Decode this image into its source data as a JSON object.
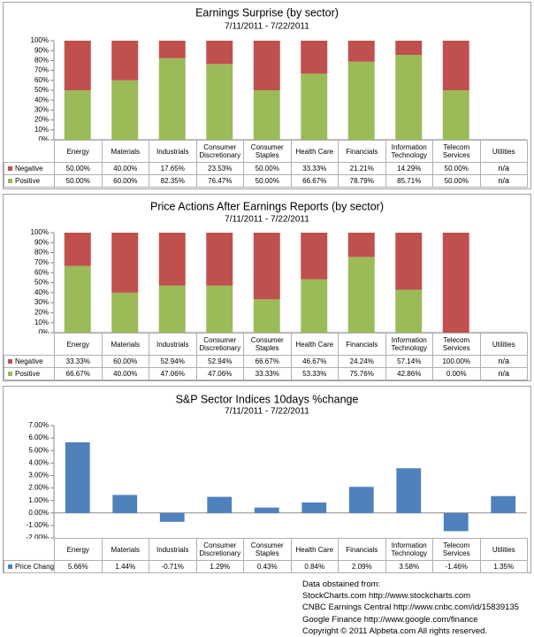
{
  "chart_data": [
    {
      "type": "stacked_bar",
      "title": "Earnings Surprise (by sector)",
      "subtitle": "7/11/2011 - 7/22/2011",
      "categories": [
        "Energy",
        "Materials",
        "Industrials",
        "Consumer Discretionary",
        "Consumer Staples",
        "Health Care",
        "Financials",
        "Information Technology",
        "Telecom Services",
        "Utilities"
      ],
      "series": [
        {
          "name": "Negative",
          "color": "#c0504d",
          "values": [
            50,
            40,
            17.65,
            23.53,
            50,
            33.33,
            21.21,
            14.29,
            50,
            null
          ],
          "value_labels": [
            "50.00%",
            "40.00%",
            "17.65%",
            "23.53%",
            "50.00%",
            "33.33%",
            "21.21%",
            "14.29%",
            "50.00%",
            "n/a"
          ]
        },
        {
          "name": "Positive",
          "color": "#9bbb59",
          "values": [
            50,
            60,
            82.35,
            76.47,
            50,
            66.67,
            78.79,
            85.71,
            50,
            null
          ],
          "value_labels": [
            "50.00%",
            "60.00%",
            "82.35%",
            "76.47%",
            "50.00%",
            "66.67%",
            "78.79%",
            "85.71%",
            "50.00%",
            "n/a"
          ]
        }
      ],
      "ylim": [
        0,
        100
      ],
      "yticks": [
        {
          "value": 0,
          "label": "0%"
        },
        {
          "value": 10,
          "label": "10%"
        },
        {
          "value": 20,
          "label": "20%"
        },
        {
          "value": 30,
          "label": "30%"
        },
        {
          "value": 40,
          "label": "40%"
        },
        {
          "value": 50,
          "label": "50%"
        },
        {
          "value": 60,
          "label": "60%"
        },
        {
          "value": 70,
          "label": "70%"
        },
        {
          "value": 80,
          "label": "80%"
        },
        {
          "value": 90,
          "label": "90%"
        },
        {
          "value": 100,
          "label": "100%"
        }
      ]
    },
    {
      "type": "stacked_bar",
      "title": "Price Actions After Earnings Reports (by sector)",
      "subtitle": "7/11/2011 - 7/22/2011",
      "categories": [
        "Energy",
        "Materials",
        "Industrials",
        "Consumer Discretionary",
        "Consumer Staples",
        "Health Care",
        "Financials",
        "Information Technology",
        "Telecom Services",
        "Utilities"
      ],
      "series": [
        {
          "name": "Negative",
          "color": "#c0504d",
          "values": [
            33.33,
            60,
            52.94,
            52.94,
            66.67,
            46.67,
            24.24,
            57.14,
            100,
            null
          ],
          "value_labels": [
            "33.33%",
            "60.00%",
            "52.94%",
            "52.94%",
            "66.67%",
            "46.67%",
            "24.24%",
            "57.14%",
            "100.00%",
            "n/a"
          ]
        },
        {
          "name": "Positive",
          "color": "#9bbb59",
          "values": [
            66.67,
            40,
            47.06,
            47.06,
            33.33,
            53.33,
            75.76,
            42.86,
            0,
            null
          ],
          "value_labels": [
            "66.67%",
            "40.00%",
            "47.06%",
            "47.06%",
            "33.33%",
            "53.33%",
            "75.76%",
            "42.86%",
            "0.00%",
            "n/a"
          ]
        }
      ],
      "ylim": [
        0,
        100
      ],
      "yticks": [
        {
          "value": 0,
          "label": "0%"
        },
        {
          "value": 10,
          "label": "10%"
        },
        {
          "value": 20,
          "label": "20%"
        },
        {
          "value": 30,
          "label": "30%"
        },
        {
          "value": 40,
          "label": "40%"
        },
        {
          "value": 50,
          "label": "50%"
        },
        {
          "value": 60,
          "label": "60%"
        },
        {
          "value": 70,
          "label": "70%"
        },
        {
          "value": 80,
          "label": "80%"
        },
        {
          "value": 90,
          "label": "90%"
        },
        {
          "value": 100,
          "label": "100%"
        }
      ]
    },
    {
      "type": "bar",
      "title": "S&P Sector Indices 10days %change",
      "subtitle": "7/11/2011 - 7/22/2011",
      "categories": [
        "Energy",
        "Materials",
        "Industrials",
        "Consumer Discretionary",
        "Consumer Staples",
        "Health Care",
        "Financials",
        "Information Technology",
        "Telecom Services",
        "Utilities"
      ],
      "series": [
        {
          "name": "Price Change",
          "color": "#4f81bd",
          "values": [
            5.66,
            1.44,
            -0.71,
            1.29,
            0.43,
            0.84,
            2.09,
            3.58,
            -1.46,
            1.35
          ],
          "value_labels": [
            "5.66%",
            "1.44%",
            "-0.71%",
            "1.29%",
            "0.43%",
            "0.84%",
            "2.09%",
            "3.58%",
            "-1.46%",
            "1.35%"
          ]
        }
      ],
      "ylim": [
        -2,
        7
      ],
      "yticks": [
        {
          "value": -2,
          "label": "-2.00%"
        },
        {
          "value": -1,
          "label": "-1.00%"
        },
        {
          "value": 0,
          "label": "0.00%"
        },
        {
          "value": 1,
          "label": "1.00%"
        },
        {
          "value": 2,
          "label": "2.00%"
        },
        {
          "value": 3,
          "label": "3.00%"
        },
        {
          "value": 4,
          "label": "4.00%"
        },
        {
          "value": 5,
          "label": "5.00%"
        },
        {
          "value": 6,
          "label": "6.00%"
        },
        {
          "value": 7,
          "label": "7.00%"
        }
      ]
    }
  ],
  "footer": {
    "lines": [
      "Data obstained from:",
      "StockCharts.com http://www.stockcharts.com",
      "CNBC Earnings Central http://www.cnbc.com/id/15839135",
      "Google Finance http://www.google.com/finance",
      "Copyright © 2011 Alpbeta.com   All rights reserved."
    ]
  }
}
